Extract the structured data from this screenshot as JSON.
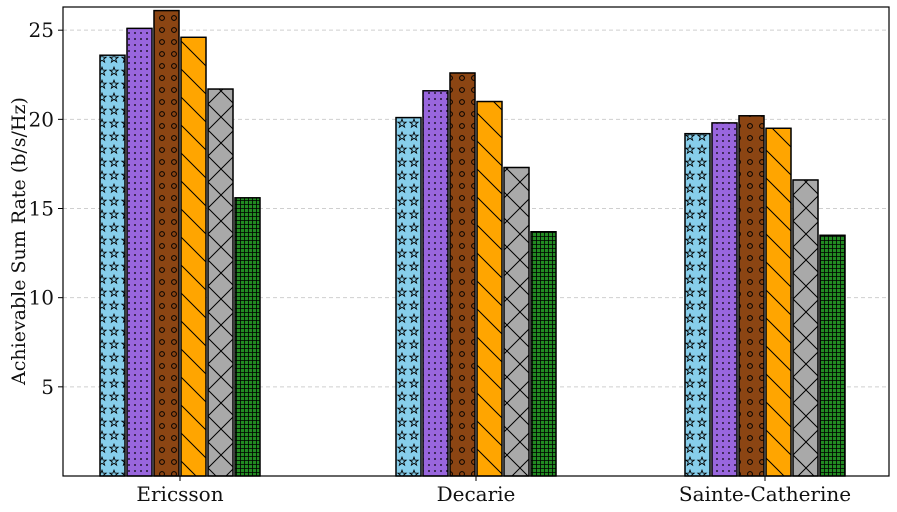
{
  "chart_data": {
    "type": "bar",
    "categories": [
      "Ericsson",
      "Decarie",
      "Sainte-Catherine"
    ],
    "ylabel": "Achievable Sum Rate (b/s/Hz)",
    "xlabel": "",
    "ylim": [
      0,
      26.3
    ],
    "yticks": [
      5,
      10,
      15,
      20,
      25
    ],
    "grid": "y-dashed",
    "series": [
      {
        "values": [
          23.6,
          20.1,
          19.2
        ],
        "color": "#87CEEB",
        "pattern": "stars"
      },
      {
        "values": [
          25.1,
          21.6,
          19.8
        ],
        "color": "#9966DD",
        "pattern": "dots"
      },
      {
        "values": [
          26.1,
          22.6,
          20.2
        ],
        "color": "#8B4513",
        "pattern": "circles"
      },
      {
        "values": [
          24.6,
          21.0,
          19.5
        ],
        "color": "#FFA500",
        "pattern": "diagonal"
      },
      {
        "values": [
          21.7,
          17.3,
          16.6
        ],
        "color": "#A9A9A9",
        "pattern": "crosshatch"
      },
      {
        "values": [
          15.6,
          13.7,
          13.5
        ],
        "color": "#228B22",
        "pattern": "grid"
      }
    ]
  }
}
